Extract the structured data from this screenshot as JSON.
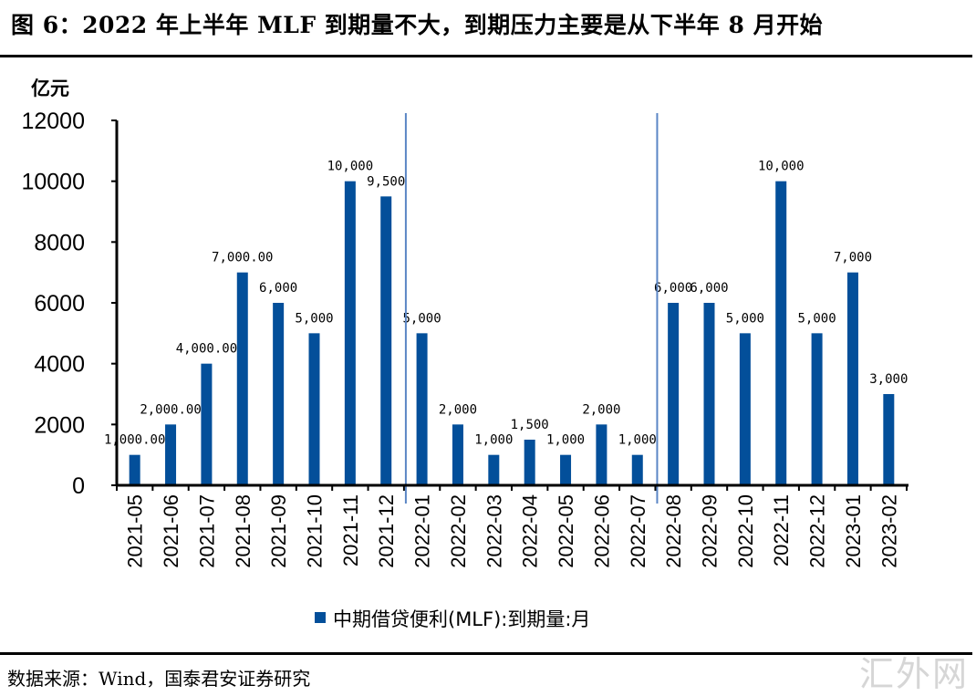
{
  "figure": {
    "title": "图 6：2022 年上半年 MLF 到期量不大，到期压力主要是从下半年 8 月开始",
    "source": "数据来源：Wind，国泰君安证券研究",
    "watermark": "汇外网"
  },
  "chart_data": {
    "type": "bar",
    "title": "图 6：2022 年上半年 MLF 到期量不大，到期压力主要是从下半年 8 月开始",
    "ylabel": "亿元",
    "xlabel": "",
    "ylim": [
      0,
      12000
    ],
    "yticks": [
      0,
      2000,
      4000,
      6000,
      8000,
      10000,
      12000
    ],
    "ytick_labels": [
      "0",
      "2000",
      "4000",
      "6000",
      "8000",
      "10000",
      "12000"
    ],
    "grid": false,
    "legend_position": "bottom-center",
    "bar_color": "#034F9A",
    "divider_color": "#5B86C5",
    "categories": [
      "2021-05",
      "2021-06",
      "2021-07",
      "2021-08",
      "2021-09",
      "2021-10",
      "2021-11",
      "2021-12",
      "2022-01",
      "2022-02",
      "2022-03",
      "2022-04",
      "2022-05",
      "2022-06",
      "2022-07",
      "2022-08",
      "2022-09",
      "2022-10",
      "2022-11",
      "2022-12",
      "2023-01",
      "2023-02"
    ],
    "series": [
      {
        "name": "中期借贷便利(MLF):到期量:月",
        "values": [
          1000,
          2000,
          4000,
          7000,
          6000,
          5000,
          10000,
          9500,
          5000,
          2000,
          1000,
          1500,
          1000,
          2000,
          1000,
          6000,
          6000,
          5000,
          10000,
          5000,
          7000,
          3000
        ],
        "data_labels": [
          "1,000.00",
          "2,000.00",
          "4,000.00",
          "7,000.00",
          "6,000",
          "5,000",
          "10,000",
          "9,500",
          "5,000",
          "2,000",
          "1,000",
          "1,500",
          "1,000",
          "2,000",
          "1,000",
          "6,000",
          "6,000",
          "5,000",
          "10,000",
          "5,000",
          "7,000",
          "3,000"
        ]
      }
    ],
    "annotations": [
      {
        "type": "vertical-divider",
        "between": [
          "2021-12",
          "2022-01"
        ]
      },
      {
        "type": "vertical-divider",
        "between": [
          "2022-07",
          "2022-08"
        ]
      }
    ]
  }
}
